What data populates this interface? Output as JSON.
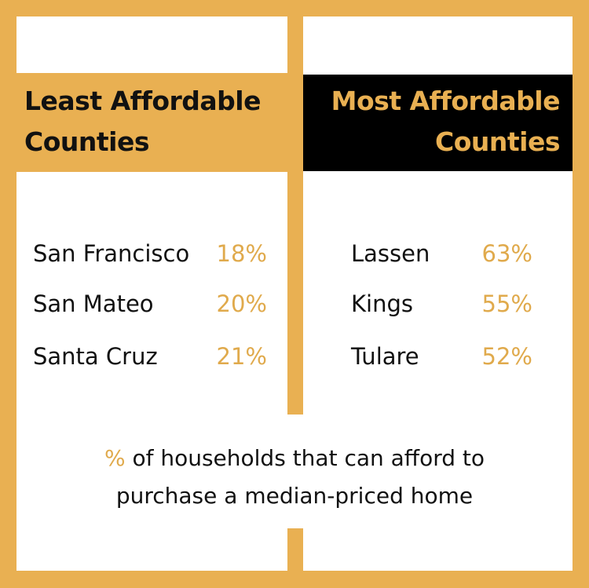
{
  "colors": {
    "accent": "#e9b052",
    "header_dark": "#000000"
  },
  "left": {
    "title_line1": "Least Affordable",
    "title_line2": "Counties",
    "rows": [
      {
        "county": "San Francisco",
        "pct": "18%"
      },
      {
        "county": "San Mateo",
        "pct": "20%"
      },
      {
        "county": "Santa Cruz",
        "pct": "21%"
      }
    ]
  },
  "right": {
    "title_line1": "Most Affordable",
    "title_line2": "Counties",
    "rows": [
      {
        "county": "Lassen",
        "pct": "63%"
      },
      {
        "county": "Kings",
        "pct": "55%"
      },
      {
        "county": "Tulare",
        "pct": "52%"
      }
    ]
  },
  "caption": {
    "symbol": "%",
    "line1_rest": " of households that can afford to",
    "line2": "purchase a median-priced home"
  }
}
